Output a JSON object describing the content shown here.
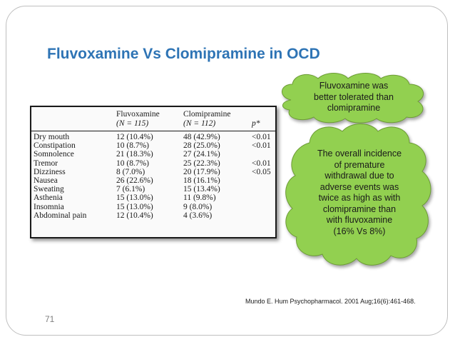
{
  "slide": {
    "title": "Fluvoxamine Vs Clomipramine in OCD",
    "slide_number": "71",
    "citation": "Mundo E. Hum Psychopharmacol. 2001 Aug;16(6):461-468."
  },
  "table": {
    "headers": [
      {
        "line1": "",
        "line2": ""
      },
      {
        "line1": "Fluvoxamine",
        "line2": "(N = 115)"
      },
      {
        "line1": "Clomipramine",
        "line2": "(N = 112)"
      },
      {
        "line1": "",
        "line2": "p*"
      }
    ],
    "rows": [
      {
        "effect": "Dry mouth",
        "fluvoxamine": "12 (10.4%)",
        "clomipramine": "48 (42.9%)",
        "p": "<0.01"
      },
      {
        "effect": "Constipation",
        "fluvoxamine": "10 (8.7%)",
        "clomipramine": "28 (25.0%)",
        "p": "<0.01"
      },
      {
        "effect": "Somnolence",
        "fluvoxamine": "21 (18.3%)",
        "clomipramine": "27 (24.1%)",
        "p": ""
      },
      {
        "effect": "Tremor",
        "fluvoxamine": "10 (8.7%)",
        "clomipramine": "25 (22.3%)",
        "p": "<0.01"
      },
      {
        "effect": "Dizziness",
        "fluvoxamine": "8 (7.0%)",
        "clomipramine": "20 (17.9%)",
        "p": "<0.05"
      },
      {
        "effect": "Nausea",
        "fluvoxamine": "26 (22.6%)",
        "clomipramine": "18 (16.1%)",
        "p": ""
      },
      {
        "effect": "Sweating",
        "fluvoxamine": "7 (6.1%)",
        "clomipramine": "15 (13.4%)",
        "p": ""
      },
      {
        "effect": "Asthenia",
        "fluvoxamine": "15 (13.0%)",
        "clomipramine": "11 (9.8%)",
        "p": ""
      },
      {
        "effect": "Insomnia",
        "fluvoxamine": "15 (13.0%)",
        "clomipramine": "9 (8.0%)",
        "p": ""
      },
      {
        "effect": "Abdominal pain",
        "fluvoxamine": "12 (10.4%)",
        "clomipramine": "4 (3.6%)",
        "p": ""
      }
    ]
  },
  "callouts": {
    "top": {
      "lines": [
        "Fluvoxamine was",
        "better tolerated than",
        "clomipramine"
      ]
    },
    "bottom": {
      "lines": [
        "The overall incidence",
        "of premature",
        "withdrawal due to",
        "adverse events was",
        "twice as high as with",
        "clomipramine than",
        "with fluvoxamine",
        "(16% Vs 8%)"
      ]
    }
  },
  "colors": {
    "title": "#2e74b5",
    "callout_fill": "#92d050",
    "slide_number": "#7f7f7f"
  }
}
